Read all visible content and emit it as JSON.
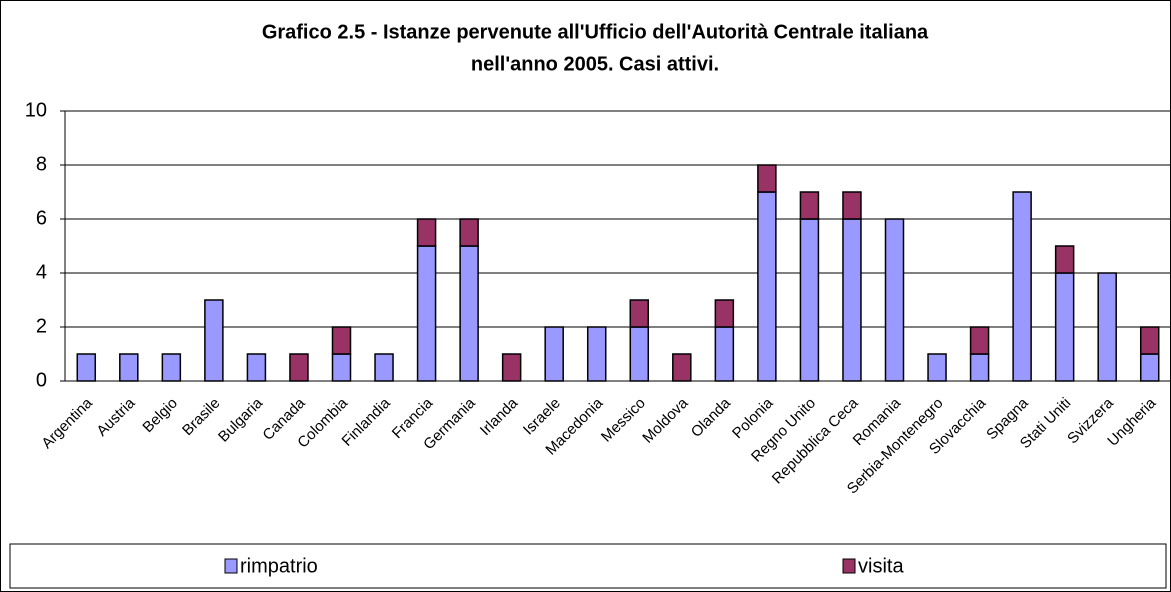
{
  "chart_data": {
    "type": "stacked_bar",
    "title": [
      "Grafico 2.5 - Istanze pervenute all'Ufficio dell'Autorità Centrale italiana",
      "nell'anno 2005. Casi attivi."
    ],
    "categories": [
      "Argentina",
      "Austria",
      "Belgio",
      "Brasile",
      "Bulgaria",
      "Canada",
      "Colombia",
      "Finlandia",
      "Francia",
      "Germania",
      "Irlanda",
      "Israele",
      "Macedonia",
      "Messico",
      "Moldova",
      "Olanda",
      "Polonia",
      "Regno Unito",
      "Repubblica Ceca",
      "Romania",
      "Serbia-Montenegro",
      "Slovacchia",
      "Spagna",
      "Stati Uniti",
      "Svizzera",
      "Ungheria"
    ],
    "series": [
      {
        "name": "rimpatrio",
        "color": "#9999ff",
        "values": [
          1,
          1,
          1,
          3,
          1,
          0,
          1,
          1,
          5,
          5,
          0,
          2,
          2,
          2,
          0,
          2,
          7,
          6,
          6,
          6,
          1,
          1,
          7,
          4,
          4,
          1
        ]
      },
      {
        "name": "visita",
        "color": "#993366",
        "values": [
          0,
          0,
          0,
          0,
          0,
          1,
          1,
          0,
          1,
          1,
          1,
          0,
          0,
          1,
          1,
          1,
          1,
          1,
          1,
          0,
          0,
          1,
          0,
          1,
          0,
          1
        ]
      }
    ],
    "ylim": [
      0,
      10
    ],
    "yticks": [
      0,
      2,
      4,
      6,
      8,
      10
    ],
    "grid": true,
    "legend": "bottom"
  }
}
